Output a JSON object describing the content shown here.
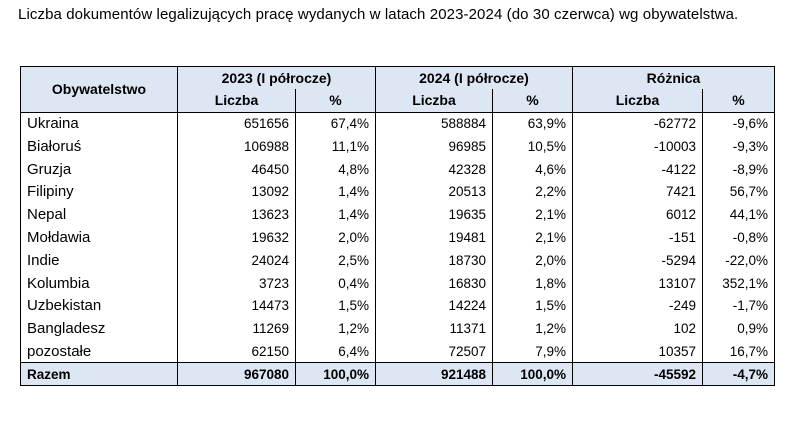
{
  "caption": "Liczba dokumentów legalizujących pracę wydanych w latach 2023-2024 (do 30 czerwca) wg obywatelstwa.",
  "table": {
    "row_header": "Obywatelstwo",
    "groups": [
      "2023 (I półrocze)",
      "2024 (I półrocze)",
      "Różnica"
    ],
    "sub_headers": [
      "Liczba",
      "%",
      "Liczba",
      "%",
      "Liczba",
      "%"
    ],
    "rows": [
      {
        "country": "Ukraina",
        "values": [
          "651656",
          "67,4%",
          "588884",
          "63,9%",
          "-62772",
          "-9,6%"
        ]
      },
      {
        "country": "Białoruś",
        "values": [
          "106988",
          "11,1%",
          "96985",
          "10,5%",
          "-10003",
          "-9,3%"
        ]
      },
      {
        "country": "Gruzja",
        "values": [
          "46450",
          "4,8%",
          "42328",
          "4,6%",
          "-4122",
          "-8,9%"
        ]
      },
      {
        "country": "Filipiny",
        "values": [
          "13092",
          "1,4%",
          "20513",
          "2,2%",
          "7421",
          "56,7%"
        ]
      },
      {
        "country": "Nepal",
        "values": [
          "13623",
          "1,4%",
          "19635",
          "2,1%",
          "6012",
          "44,1%"
        ]
      },
      {
        "country": "Mołdawia",
        "values": [
          "19632",
          "2,0%",
          "19481",
          "2,1%",
          "-151",
          "-0,8%"
        ]
      },
      {
        "country": "Indie",
        "values": [
          "24024",
          "2,5%",
          "18730",
          "2,0%",
          "-5294",
          "-22,0%"
        ]
      },
      {
        "country": "Kolumbia",
        "values": [
          "3723",
          "0,4%",
          "16830",
          "1,8%",
          "13107",
          "352,1%"
        ]
      },
      {
        "country": "Uzbekistan",
        "values": [
          "14473",
          "1,5%",
          "14224",
          "1,5%",
          "-249",
          "-1,7%"
        ]
      },
      {
        "country": "Bangladesz",
        "values": [
          "11269",
          "1,2%",
          "11371",
          "1,2%",
          "102",
          "0,9%"
        ]
      },
      {
        "country": "pozostałe",
        "values": [
          "62150",
          "6,4%",
          "72507",
          "7,9%",
          "10357",
          "16,7%"
        ]
      }
    ],
    "total": {
      "country": "Razem",
      "values": [
        "967080",
        "100,0%",
        "921488",
        "100,0%",
        "-45592",
        "-4,7%"
      ]
    }
  }
}
